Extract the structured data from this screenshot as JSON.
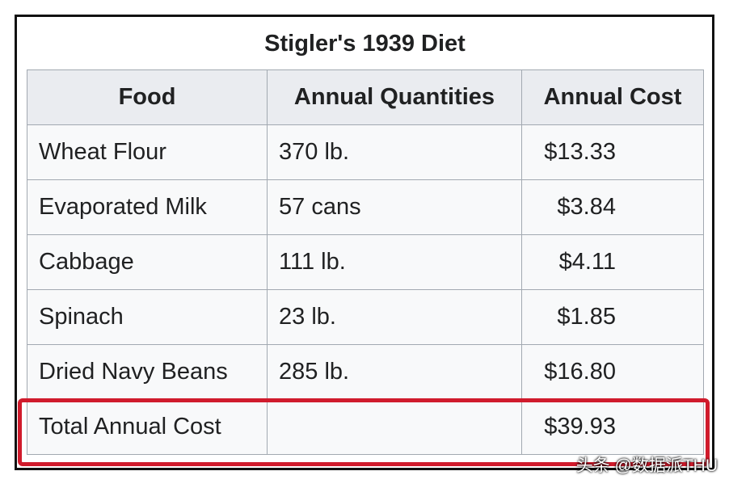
{
  "table": {
    "title": "Stigler's 1939 Diet",
    "headers": [
      "Food",
      "Annual Quantities",
      "Annual Cost"
    ],
    "rows": [
      [
        "Wheat Flour",
        "370 lb.",
        "$13.33"
      ],
      [
        "Evaporated Milk",
        "57 cans",
        "$3.84"
      ],
      [
        "Cabbage",
        "111 lb.",
        "$4.11"
      ],
      [
        "Spinach",
        "23 lb.",
        "$1.85"
      ],
      [
        "Dried Navy Beans",
        "285 lb.",
        "$16.80"
      ]
    ],
    "total": {
      "label": "Total Annual Cost",
      "cost": "$39.93"
    }
  },
  "watermark": "头条 @数据派THU"
}
